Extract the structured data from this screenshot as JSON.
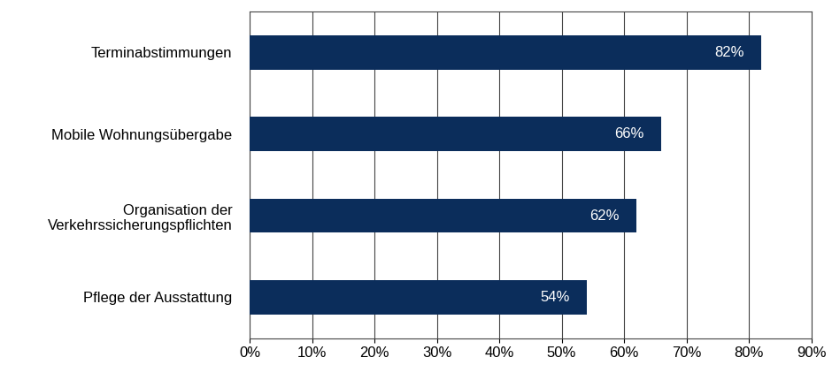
{
  "chart_data": {
    "type": "bar",
    "orientation": "horizontal",
    "categories": [
      "Terminabstimmungen",
      "Mobile Wohnungsübergabe",
      "Organisation der Verkehrssicherungspflichten",
      "Pflege der Ausstattung"
    ],
    "values": [
      82,
      66,
      62,
      54
    ],
    "value_labels": [
      "82%",
      "66%",
      "62%",
      "54%"
    ],
    "data_labels": true,
    "color": "#0b2d5b",
    "xlim": [
      0,
      90
    ],
    "xticks": [
      {
        "value": 0,
        "label": "0%"
      },
      {
        "value": 10,
        "label": "10%"
      },
      {
        "value": 20,
        "label": "20%"
      },
      {
        "value": 30,
        "label": "30%"
      },
      {
        "value": 40,
        "label": "40%"
      },
      {
        "value": 50,
        "label": "50%"
      },
      {
        "value": 60,
        "label": "60%"
      },
      {
        "value": 70,
        "label": "70%"
      },
      {
        "value": 80,
        "label": "80%"
      },
      {
        "value": 90,
        "label": "90%"
      }
    ],
    "grid": true
  }
}
